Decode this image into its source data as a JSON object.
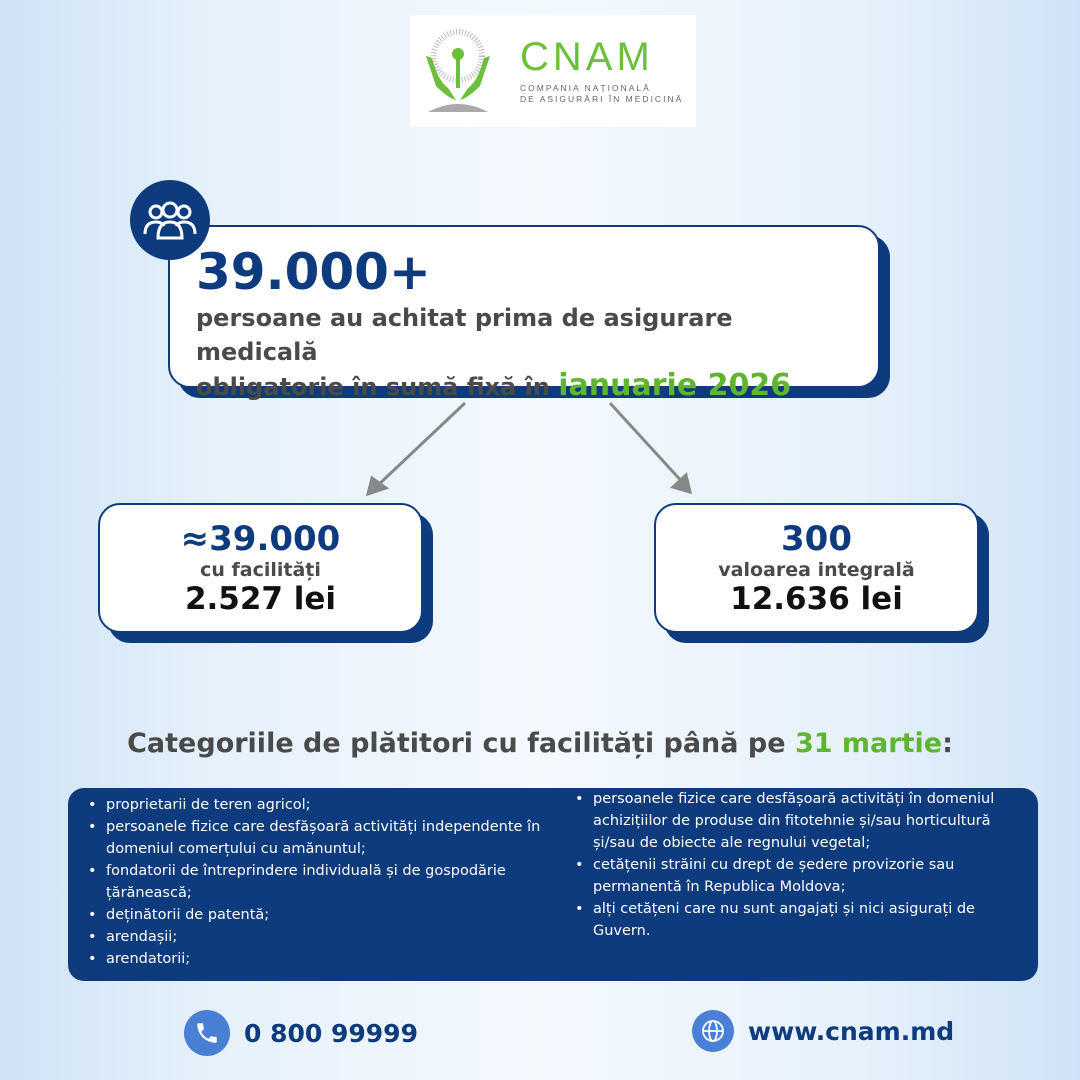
{
  "logo": {
    "name": "CNAM",
    "line1": "COMPANIA NAȚIONALĂ",
    "line2": "DE ASIGURĂRI ÎN MEDICINĂ"
  },
  "main": {
    "count": "39.000+",
    "text1": "persoane au achitat prima de asigurare medicală",
    "text2": "obligatorie în sumă fixă în",
    "highlight": "ianuarie 2026"
  },
  "left_card": {
    "approx": "≈",
    "count": "39.000",
    "label": "cu facilități",
    "amount": "2.527 lei"
  },
  "right_card": {
    "count": "300",
    "label": "valoarea integrală",
    "amount": "12.636 lei"
  },
  "categories": {
    "title": "Categoriile de plătitori cu facilități până pe",
    "highlight": "31 martie",
    "colon": ":",
    "left": [
      "proprietarii de teren agricol;",
      "persoanele fizice care desfășoară activități independente în domeniul comerțului cu amănuntul;",
      "fondatorii de întreprindere individuală și de gospodărie țărănească;",
      "deținătorii de patentă;",
      "arendașii;",
      "arendatorii;"
    ],
    "right": [
      "persoanele fizice care desfășoară activități în domeniul achizițiilor  de produse din fitotehnie și/sau horticultură și/sau de obiecte ale regnului vegetal;",
      "cetățenii străini cu drept de ședere provizorie sau permanentă în Republica Moldova;",
      "alți cetățeni care nu sunt angajați și nici asigurați de Guvern."
    ]
  },
  "footer": {
    "phone": "0 800 99999",
    "website": "www.cnam.md"
  },
  "colors": {
    "navy": "#0d3b7e",
    "green": "#5fb52f"
  }
}
